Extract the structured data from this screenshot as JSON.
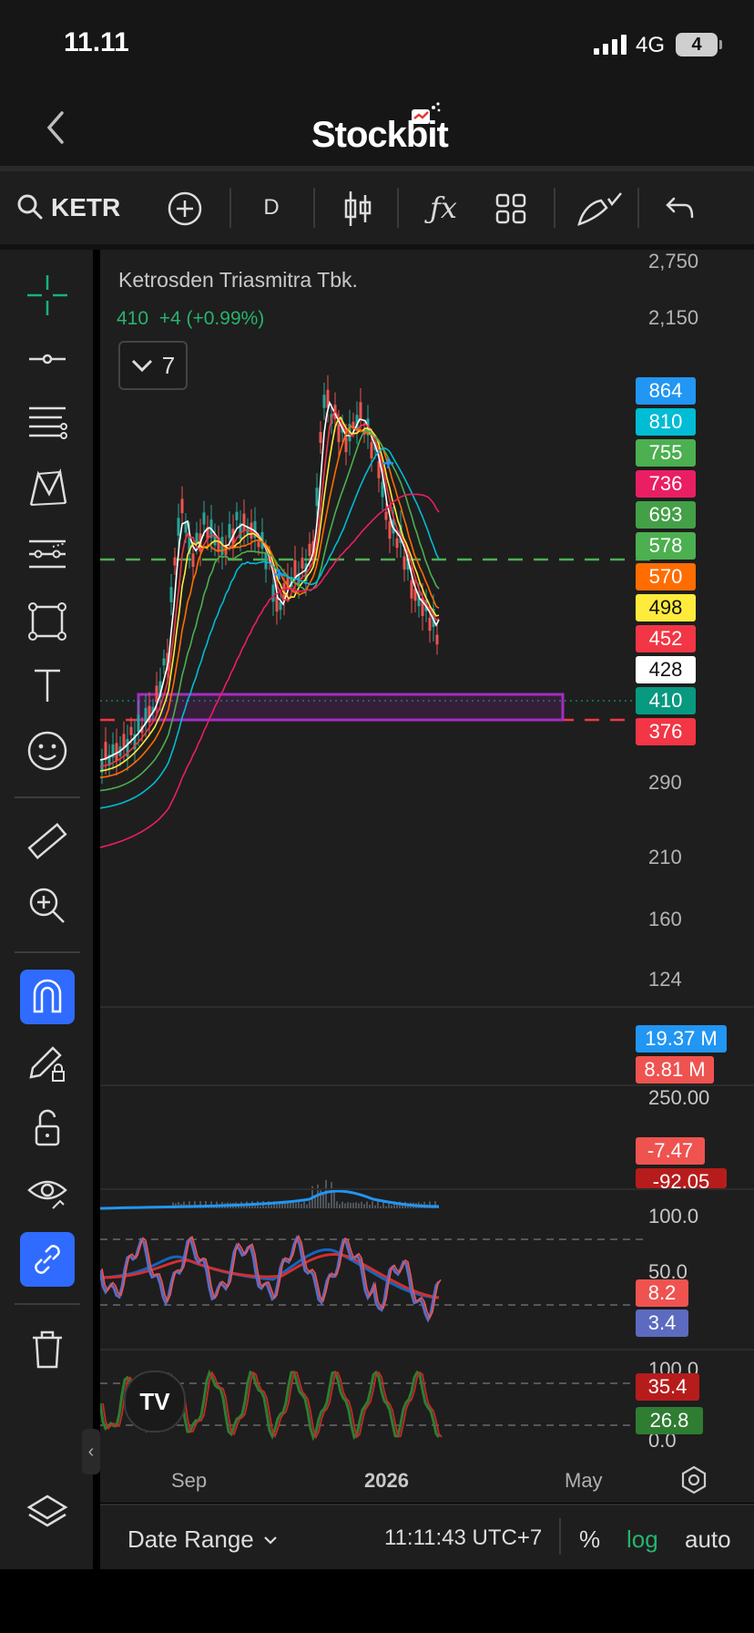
{
  "status_bar": {
    "time": "11.11",
    "network": "4G",
    "battery": "4"
  },
  "header": {
    "app_name": "Stockbit"
  },
  "toolbar": {
    "symbol": "KETR",
    "interval": "D",
    "icons": [
      "search-icon",
      "add-icon",
      "candlestick-icon",
      "function-icon",
      "layout-icon",
      "draw-icon",
      "undo-icon"
    ]
  },
  "left_tools": [
    "crosshair-icon",
    "horizontal-line-icon",
    "fib-lines-icon",
    "pattern-icon",
    "channel-icon",
    "rectangle-icon",
    "text-icon",
    "emoji-icon",
    "ruler-icon",
    "zoom-in-icon",
    "magnet-icon",
    "pencil-lock-icon",
    "lock-icon",
    "eye-icon",
    "link-icon",
    "trash-icon",
    "layers-icon"
  ],
  "chart": {
    "title": "Ketrosden Triasmitra Tbk.",
    "last": "410",
    "change": "+4 (+0.99%)",
    "indicator_count": "7",
    "price_axis": [
      "2,750",
      "2,150",
      "290",
      "210",
      "160",
      "124"
    ],
    "ma_badges": [
      {
        "value": "864",
        "color": "#2196f3"
      },
      {
        "value": "810",
        "color": "#00bcd4"
      },
      {
        "value": "755",
        "color": "#4caf50"
      },
      {
        "value": "736",
        "color": "#e91e63"
      },
      {
        "value": "693",
        "color": "#43a047"
      },
      {
        "value": "578",
        "color": "#4caf50"
      },
      {
        "value": "570",
        "color": "#ff6d00"
      },
      {
        "value": "498",
        "color": "#ffeb3b"
      },
      {
        "value": "452",
        "color": "#f23645"
      },
      {
        "value": "428",
        "color": "#ffffff"
      },
      {
        "value": "410",
        "color": "#089981"
      },
      {
        "value": "376",
        "color": "#f23645"
      }
    ],
    "volume_badges": [
      {
        "value": "19.37 M",
        "color": "#2196f3"
      },
      {
        "value": "8.81 M",
        "color": "#ef5350"
      }
    ],
    "macd_axis": "250.00",
    "macd_badges": [
      {
        "value": "-7.47",
        "color": "#ef5350"
      },
      {
        "value": "-92.05",
        "color": "#b71c1c"
      }
    ],
    "stoch_axis": [
      "100.0",
      "50.0"
    ],
    "stoch_badges": [
      {
        "value": "8.2",
        "color": "#ef5350"
      },
      {
        "value": "3.4",
        "color": "#5c6bc0"
      }
    ],
    "osc_axis": [
      "100.0",
      "0.0"
    ],
    "osc_badges": [
      {
        "value": "35.4",
        "color": "#b71c1c"
      },
      {
        "value": "26.8",
        "color": "#2e7d32"
      }
    ],
    "x_axis": [
      "Sep",
      "2026",
      "May"
    ]
  },
  "bottom_bar": {
    "date_range": "Date Range",
    "clock": "11:11:43 UTC+7",
    "percent": "%",
    "log": "log",
    "auto": "auto"
  }
}
